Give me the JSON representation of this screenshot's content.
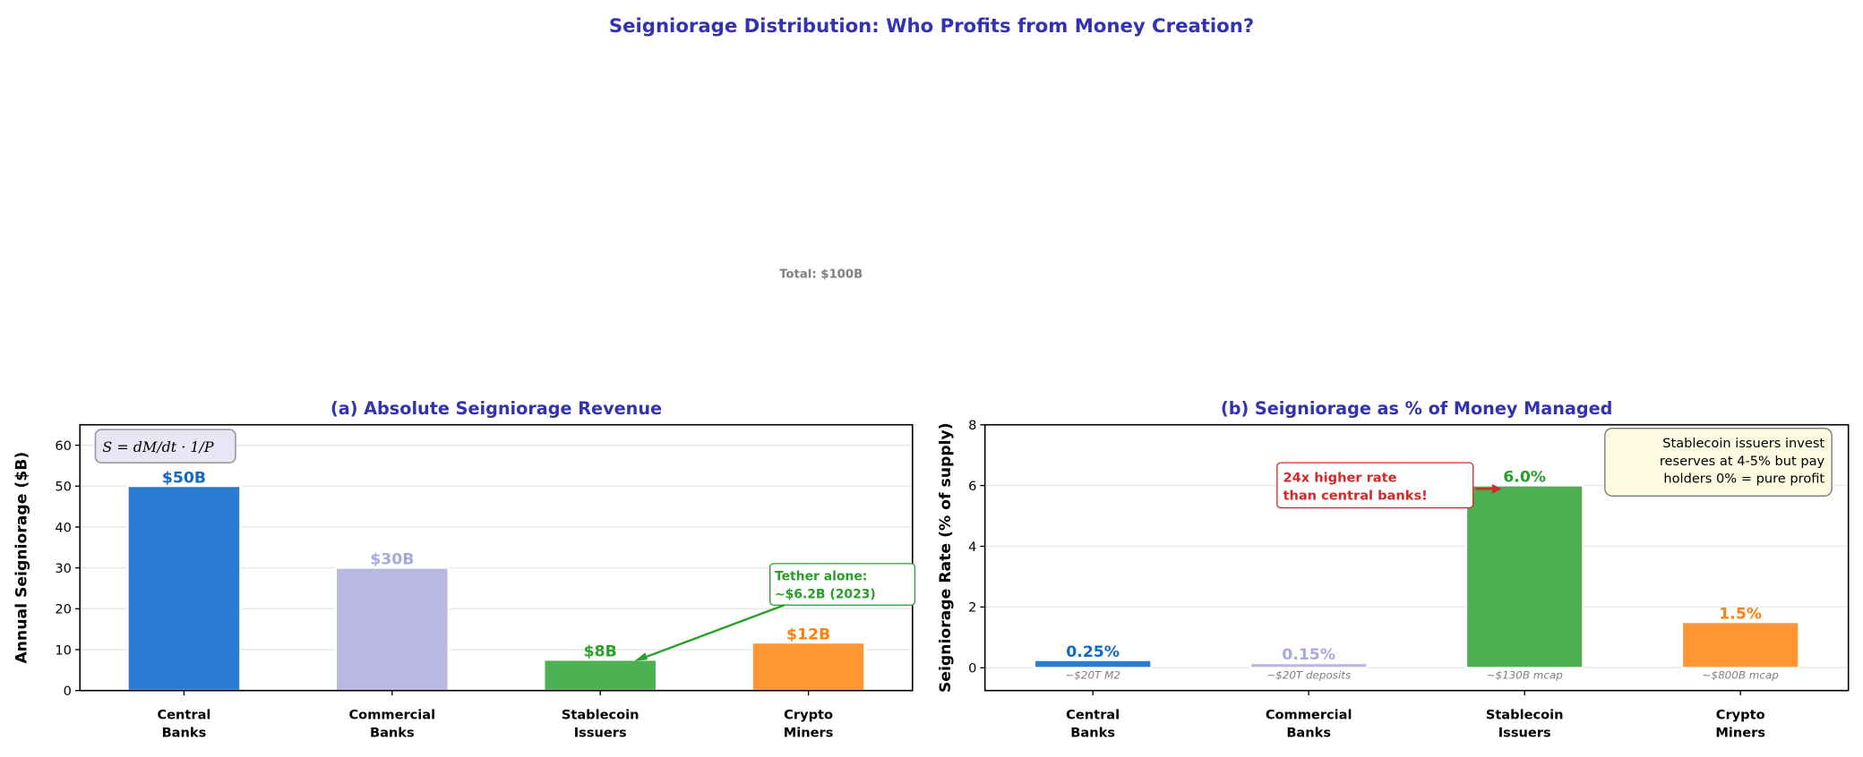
{
  "suptitle": "Seigniorage Distribution: Who Profits from Money Creation?",
  "total_label": "Total: $100B",
  "colors": {
    "title": "#3333b2",
    "bars": [
      "#2a7bd4",
      "#b8b8e3",
      "#4caf50",
      "#ff9533"
    ],
    "labels": [
      "#1168c8",
      "#a8a8e0",
      "#26a026",
      "#ff7f0e"
    ]
  },
  "chart_data": [
    {
      "type": "bar",
      "title": "(a) Absolute Seigniorage Revenue",
      "ylabel": "Annual Seigniorage ($B)",
      "xlabel": "",
      "categories": [
        "Central\nBanks",
        "Commercial\nBanks",
        "Stablecoin\nIssuers",
        "Crypto\nMiners"
      ],
      "values": [
        50,
        30,
        7.5,
        11.7
      ],
      "data_labels": [
        "$50B",
        "$30B",
        "$8B",
        "$12B"
      ],
      "ylim": [
        0,
        65
      ],
      "yticks": [
        0,
        10,
        20,
        30,
        40,
        50,
        60
      ],
      "grid": true,
      "formula": "S = dM/dt · 1/P",
      "annotation": {
        "text": [
          "Tether alone:",
          "~$6.2B (2023)"
        ],
        "color": "#26a026"
      }
    },
    {
      "type": "bar",
      "title": "(b) Seigniorage as % of Money Managed",
      "ylabel": "Seigniorage Rate (% of supply)",
      "xlabel": "",
      "categories": [
        "Central\nBanks",
        "Commercial\nBanks",
        "Stablecoin\nIssuers",
        "Crypto\nMiners"
      ],
      "values": [
        0.25,
        0.15,
        6.0,
        1.5
      ],
      "data_labels": [
        "0.25%",
        "0.15%",
        "6.0%",
        "1.5%"
      ],
      "base_notes": [
        "~$20T M2",
        "~$20T deposits",
        "~$130B mcap",
        "~$800B mcap"
      ],
      "ylim": [
        -0.75,
        8
      ],
      "yticks": [
        0,
        2,
        4,
        6,
        8
      ],
      "grid": true,
      "annotation": {
        "text": [
          "24x higher rate",
          "than central banks!"
        ],
        "color": "#d62728"
      },
      "infobox": [
        "Stablecoin issuers invest",
        "reserves at 4-5% but pay",
        "holders 0% = pure profit"
      ]
    }
  ]
}
